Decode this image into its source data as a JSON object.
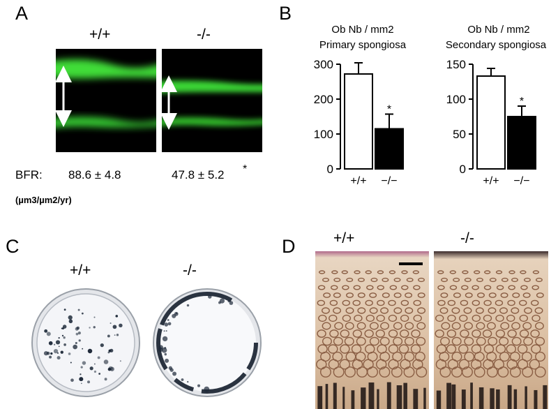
{
  "panels": {
    "A": {
      "letter": "A",
      "genotypes": [
        "+/+",
        "-/-"
      ],
      "bfr_label": "BFR:",
      "bfr_wt": "88.6 ± 4.8",
      "bfr_ko": "47.8 ±  5.2",
      "bfr_ko_star": "*",
      "bfr_unit": "(µm3/µm2/yr)"
    },
    "B": {
      "letter": "B"
    },
    "C": {
      "letter": "C",
      "genotypes": [
        "+/+",
        "-/-"
      ]
    },
    "D": {
      "letter": "D",
      "genotypes": [
        "+/+",
        "-/-"
      ]
    }
  },
  "chart_data": [
    {
      "type": "bar",
      "title_line1": "Ob Nb / mm2",
      "title_line2": "Primary spongiosa",
      "categories": [
        "+/+",
        "−/−"
      ],
      "values": [
        272,
        115
      ],
      "errors": [
        32,
        42
      ],
      "significance": [
        null,
        "*"
      ],
      "ylim": [
        0,
        300
      ],
      "yticks": [
        0,
        100,
        200,
        300
      ],
      "bar_colors": [
        "#ffffff",
        "#000000"
      ]
    },
    {
      "type": "bar",
      "title_line1": "Ob Nb / mm2",
      "title_line2": "Secondary spongiosa",
      "categories": [
        "+/+",
        "−/−"
      ],
      "values": [
        133,
        75
      ],
      "errors": [
        11,
        15
      ],
      "significance": [
        null,
        "*"
      ],
      "ylim": [
        0,
        150
      ],
      "yticks": [
        0,
        50,
        100,
        150
      ],
      "bar_colors": [
        "#ffffff",
        "#000000"
      ]
    }
  ]
}
